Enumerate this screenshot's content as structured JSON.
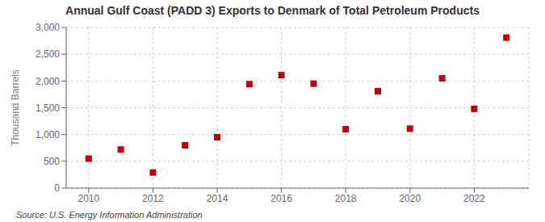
{
  "chart_data": {
    "type": "scatter",
    "title": "Annual Gulf Coast (PADD 3) Exports to Denmark of Total Petroleum Products",
    "ylabel": "Thousand Barrels",
    "annotation": "Source: U.S. Energy Information Administration",
    "x": [
      2010,
      2011,
      2012,
      2013,
      2014,
      2015,
      2016,
      2017,
      2018,
      2019,
      2020,
      2021,
      2022,
      2023
    ],
    "values": [
      550,
      720,
      290,
      800,
      950,
      1940,
      2110,
      1950,
      1100,
      1810,
      1110,
      2050,
      1480,
      2810
    ],
    "color": "#c00000",
    "marker": "square",
    "xlim": [
      2009.3,
      2023.7
    ],
    "xticks": [
      2010,
      2012,
      2014,
      2016,
      2018,
      2020,
      2022
    ],
    "ylim": [
      0,
      3000
    ],
    "yticks": [
      0,
      500,
      {
        "value": 1000,
        "label": "1,000"
      },
      {
        "value": 1500,
        "label": "1,500"
      },
      {
        "value": 2000,
        "label": "2,000"
      },
      {
        "value": 2500,
        "label": "2,500"
      },
      {
        "value": 3000,
        "label": "3,000"
      }
    ],
    "grid": true
  }
}
